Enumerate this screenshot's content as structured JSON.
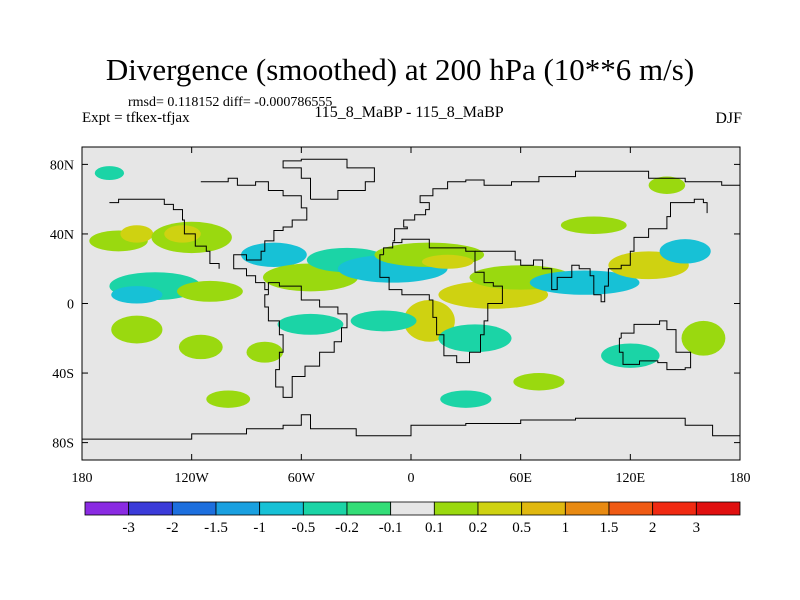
{
  "title": "Divergence (smoothed) at 200 hPa (10**6 m/s)",
  "stats_line": "rmsd= 0.118152 diff= -0.000786555",
  "expt_line": "Expt = tfkex-tfjax",
  "case_line": "115_8_MaBP - 115_8_MaBP",
  "season": "DJF",
  "x_ticks": [
    "180",
    "120W",
    "60W",
    "0",
    "60E",
    "120E",
    "180"
  ],
  "y_ticks": [
    "80N",
    "40N",
    "0",
    "40S",
    "80S"
  ],
  "x_tick_lon": [
    -180,
    -120,
    -60,
    0,
    60,
    120,
    180
  ],
  "y_tick_lat": [
    80,
    40,
    0,
    -40,
    -80
  ],
  "lon_range": [
    -180,
    180
  ],
  "lat_range": [
    -90,
    90
  ],
  "background_color": "#e6e6e6",
  "colorbar": {
    "labels": [
      "-3",
      "-2",
      "-1.5",
      "-1",
      "-0.5",
      "-0.2",
      "-0.1",
      "0.1",
      "0.2",
      "0.5",
      "1",
      "1.5",
      "2",
      "3"
    ],
    "colors": [
      "#8a2be2",
      "#3b3bd9",
      "#1d6fde",
      "#1aa0e0",
      "#17c1d6",
      "#1bd4a6",
      "#33dd77",
      "#e6e6e6",
      "#9ad90f",
      "#cfd211",
      "#e0b810",
      "#e88a12",
      "#ef5a14",
      "#f02a12",
      "#e01010"
    ]
  },
  "features": [
    {
      "lon": -160,
      "lat": 36,
      "rx": 16,
      "ry": 6,
      "color": "#9ad90f"
    },
    {
      "lon": -150,
      "lat": 40,
      "rx": 9,
      "ry": 5,
      "color": "#cfd211"
    },
    {
      "lon": -120,
      "lat": 38,
      "rx": 22,
      "ry": 9,
      "color": "#9ad90f"
    },
    {
      "lon": -125,
      "lat": 40,
      "rx": 10,
      "ry": 5,
      "color": "#cfd211"
    },
    {
      "lon": -140,
      "lat": 10,
      "rx": 25,
      "ry": 8,
      "color": "#1bd4a6"
    },
    {
      "lon": -150,
      "lat": 5,
      "rx": 14,
      "ry": 5,
      "color": "#17c1d6"
    },
    {
      "lon": -110,
      "lat": 7,
      "rx": 18,
      "ry": 6,
      "color": "#9ad90f"
    },
    {
      "lon": -75,
      "lat": 28,
      "rx": 18,
      "ry": 7,
      "color": "#17c1d6"
    },
    {
      "lon": -55,
      "lat": 15,
      "rx": 26,
      "ry": 8,
      "color": "#9ad90f"
    },
    {
      "lon": -35,
      "lat": 25,
      "rx": 22,
      "ry": 7,
      "color": "#1bd4a6"
    },
    {
      "lon": -10,
      "lat": 20,
      "rx": 30,
      "ry": 8,
      "color": "#17c1d6"
    },
    {
      "lon": 10,
      "lat": 28,
      "rx": 30,
      "ry": 7,
      "color": "#9ad90f"
    },
    {
      "lon": 20,
      "lat": 24,
      "rx": 14,
      "ry": 4,
      "color": "#cfd211"
    },
    {
      "lon": 45,
      "lat": 5,
      "rx": 30,
      "ry": 8,
      "color": "#cfd211"
    },
    {
      "lon": 60,
      "lat": 15,
      "rx": 28,
      "ry": 7,
      "color": "#9ad90f"
    },
    {
      "lon": 95,
      "lat": 12,
      "rx": 30,
      "ry": 7,
      "color": "#17c1d6"
    },
    {
      "lon": 130,
      "lat": 22,
      "rx": 22,
      "ry": 8,
      "color": "#cfd211"
    },
    {
      "lon": 150,
      "lat": 30,
      "rx": 14,
      "ry": 7,
      "color": "#17c1d6"
    },
    {
      "lon": 100,
      "lat": 45,
      "rx": 18,
      "ry": 5,
      "color": "#9ad90f"
    },
    {
      "lon": 140,
      "lat": 68,
      "rx": 10,
      "ry": 5,
      "color": "#9ad90f"
    },
    {
      "lon": 10,
      "lat": -10,
      "rx": 14,
      "ry": 12,
      "color": "#cfd211"
    },
    {
      "lon": 35,
      "lat": -20,
      "rx": 20,
      "ry": 8,
      "color": "#1bd4a6"
    },
    {
      "lon": -15,
      "lat": -10,
      "rx": 18,
      "ry": 6,
      "color": "#1bd4a6"
    },
    {
      "lon": -55,
      "lat": -12,
      "rx": 18,
      "ry": 6,
      "color": "#1bd4a6"
    },
    {
      "lon": -150,
      "lat": -15,
      "rx": 14,
      "ry": 8,
      "color": "#9ad90f"
    },
    {
      "lon": -115,
      "lat": -25,
      "rx": 12,
      "ry": 7,
      "color": "#9ad90f"
    },
    {
      "lon": -80,
      "lat": -28,
      "rx": 10,
      "ry": 6,
      "color": "#9ad90f"
    },
    {
      "lon": 160,
      "lat": -20,
      "rx": 12,
      "ry": 10,
      "color": "#9ad90f"
    },
    {
      "lon": 120,
      "lat": -30,
      "rx": 16,
      "ry": 7,
      "color": "#1bd4a6"
    },
    {
      "lon": 70,
      "lat": -45,
      "rx": 14,
      "ry": 5,
      "color": "#9ad90f"
    },
    {
      "lon": -100,
      "lat": -55,
      "rx": 12,
      "ry": 5,
      "color": "#9ad90f"
    },
    {
      "lon": 30,
      "lat": -55,
      "rx": 14,
      "ry": 5,
      "color": "#1bd4a6"
    },
    {
      "lon": -165,
      "lat": 75,
      "rx": 8,
      "ry": 4,
      "color": "#1bd4a6"
    }
  ]
}
